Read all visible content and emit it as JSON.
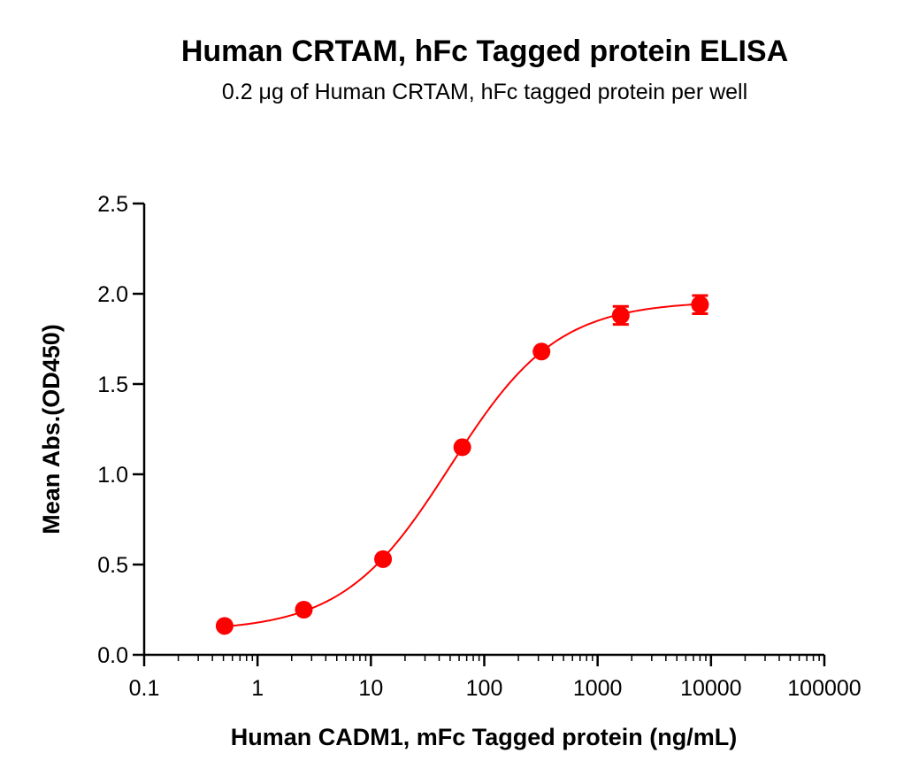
{
  "chart_data": {
    "type": "scatter",
    "title": "Human CRTAM, hFc Tagged protein ELISA",
    "subtitle": "0.2 μg of Human CRTAM, hFc tagged protein per well",
    "xlabel": "Human CADM1, mFc Tagged protein (ng/mL)",
    "ylabel": "Mean Abs.(OD450)",
    "xscale": "log",
    "xlim": [
      0.1,
      100000
    ],
    "ylim": [
      0.0,
      2.5
    ],
    "x_ticks": [
      "0.1",
      "1",
      "10",
      "100",
      "1000",
      "10000",
      "100000"
    ],
    "y_ticks": [
      "0.0",
      "0.5",
      "1.0",
      "1.5",
      "2.0",
      "2.5"
    ],
    "grid": false,
    "legend": "none",
    "series": [
      {
        "color": "#ff0000",
        "marker": "circle",
        "fit": "4PL sigmoidal",
        "x": [
          0.512,
          2.56,
          12.8,
          64,
          320,
          1600,
          8000
        ],
        "y": [
          0.16,
          0.25,
          0.53,
          1.15,
          1.68,
          1.88,
          1.94
        ],
        "error": [
          0.0,
          0.0,
          0.0,
          0.0,
          0.0,
          0.05,
          0.05
        ]
      }
    ]
  }
}
